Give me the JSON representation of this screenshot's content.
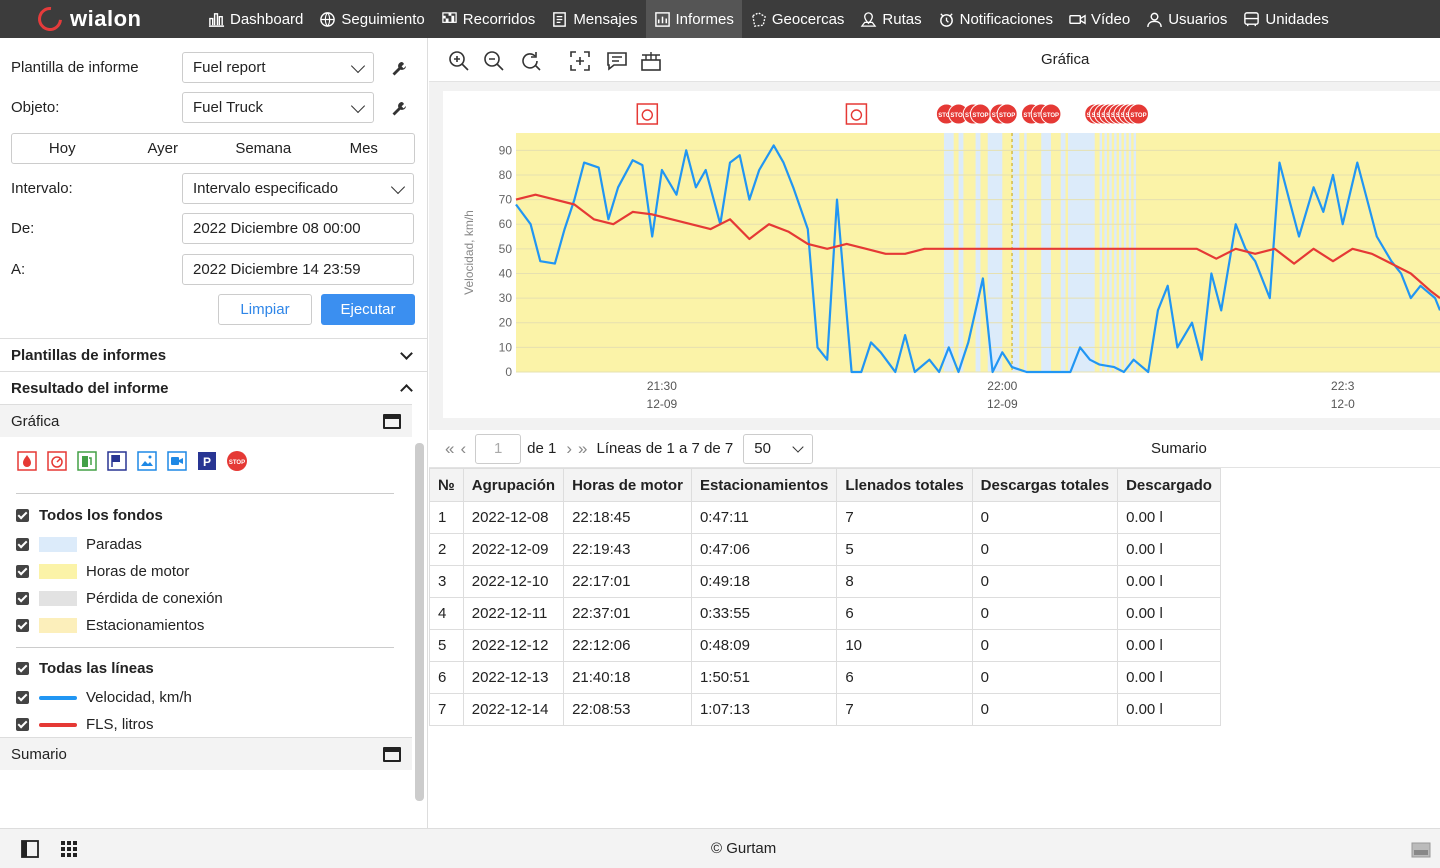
{
  "app": {
    "brand": "wialon"
  },
  "nav": [
    {
      "label": "Dashboard",
      "icon": "bar-chart-icon"
    },
    {
      "label": "Seguimiento",
      "icon": "globe-icon"
    },
    {
      "label": "Recorridos",
      "icon": "checkered-flag-icon"
    },
    {
      "label": "Mensajes",
      "icon": "document-icon"
    },
    {
      "label": "Informes",
      "icon": "report-icon",
      "active": true
    },
    {
      "label": "Geocercas",
      "icon": "polygon-icon"
    },
    {
      "label": "Rutas",
      "icon": "map-route-icon"
    },
    {
      "label": "Notificaciones",
      "icon": "clock-bell-icon"
    },
    {
      "label": "Vídeo",
      "icon": "video-icon"
    },
    {
      "label": "Usuarios",
      "icon": "user-icon"
    },
    {
      "label": "Unidades",
      "icon": "bus-icon"
    }
  ],
  "form": {
    "template_label": "Plantilla de informe",
    "template_value": "Fuel report",
    "object_label": "Objeto:",
    "object_value": "Fuel Truck",
    "periods": [
      "Hoy",
      "Ayer",
      "Semana",
      "Mes"
    ],
    "interval_label": "Intervalo:",
    "interval_value": "Intervalo especificado",
    "from_label": "De:",
    "from_value": "2022 Diciembre 08 00:00",
    "to_label": "A:",
    "to_value": "2022 Diciembre 14 23:59",
    "clear_label": "Limpiar",
    "run_label": "Ejecutar"
  },
  "sections": {
    "templates": "Plantillas de informes",
    "result": "Resultado del informe",
    "chart": "Gráfica",
    "summary": "Sumario"
  },
  "legend": {
    "bg_all": "Todos los fondos",
    "backgrounds": [
      {
        "label": "Paradas",
        "color": "#dcebfa"
      },
      {
        "label": "Horas de motor",
        "color": "#fbf3a8"
      },
      {
        "label": "Pérdida de conexión",
        "color": "#e2e2e2"
      },
      {
        "label": "Estacionamientos",
        "color": "#fcefbb"
      }
    ],
    "lines_all": "Todas las líneas",
    "lines": [
      {
        "label": "Velocidad, km/h",
        "color": "#2196f3"
      },
      {
        "label": "FLS, litros",
        "color": "#e53935"
      }
    ]
  },
  "marker_icons": [
    "fuel-drop-icon",
    "fuel-gauge-icon",
    "fuel-station-icon",
    "flag-icon",
    "image-icon",
    "video-camera-icon",
    "parking-icon",
    "stop-sign-icon"
  ],
  "chart_panel": {
    "title": "Gráfica",
    "ylabel": "Velocidad, km/h",
    "marker_text": "STOP"
  },
  "chart_data": {
    "type": "line",
    "ylabel": "Velocidad, km/h",
    "ylim": [
      0,
      95
    ],
    "yticks": [
      0,
      10,
      20,
      30,
      40,
      50,
      60,
      70,
      80,
      90
    ],
    "xticks": [
      {
        "t": "21:30",
        "d": "12-09"
      },
      {
        "t": "22:00",
        "d": "12-09"
      },
      {
        "t": "22:3",
        "d": "12-0"
      }
    ],
    "xlim_minutes": [
      21.0,
      22.9
    ],
    "series": [
      {
        "name": "Velocidad, km/h",
        "color": "#2196f3",
        "x": [
          21.0,
          21.03,
          21.05,
          21.08,
          21.1,
          21.12,
          21.14,
          21.17,
          21.19,
          21.21,
          21.24,
          21.26,
          21.28,
          21.3,
          21.33,
          21.35,
          21.37,
          21.39,
          21.42,
          21.44,
          21.46,
          21.48,
          21.5,
          21.53,
          21.55,
          21.57,
          21.6,
          21.62,
          21.64,
          21.66,
          21.69,
          21.71,
          21.73,
          21.75,
          21.78,
          21.8,
          21.82,
          21.85,
          21.87,
          21.89,
          21.91,
          21.93,
          21.96,
          21.98,
          22.0,
          22.02,
          22.05,
          22.07,
          22.09,
          22.11,
          22.14,
          22.16,
          22.18,
          22.2,
          22.23,
          22.25,
          22.27,
          22.3,
          22.32,
          22.34,
          22.36,
          22.39,
          22.41,
          22.43,
          22.45,
          22.48,
          22.5,
          22.52,
          22.55,
          22.57,
          22.59,
          22.61,
          22.64,
          22.66,
          22.68,
          22.7,
          22.73,
          22.75,
          22.77,
          22.8,
          22.82,
          22.84,
          22.86,
          22.89,
          22.9
        ],
        "y": [
          68,
          60,
          45,
          44,
          58,
          70,
          85,
          83,
          62,
          75,
          86,
          84,
          55,
          82,
          72,
          90,
          75,
          82,
          60,
          85,
          88,
          70,
          82,
          92,
          85,
          75,
          58,
          10,
          5,
          70,
          0,
          0,
          12,
          8,
          0,
          15,
          0,
          5,
          0,
          10,
          0,
          12,
          38,
          0,
          8,
          2,
          0,
          0,
          0,
          0,
          0,
          10,
          5,
          3,
          2,
          0,
          5,
          0,
          25,
          35,
          10,
          20,
          5,
          40,
          25,
          60,
          50,
          45,
          30,
          85,
          70,
          55,
          75,
          65,
          80,
          60,
          85,
          70,
          55,
          45,
          40,
          30,
          35,
          30,
          25
        ]
      },
      {
        "name": "FLS, litros",
        "color": "#e53935",
        "x": [
          21.0,
          21.04,
          21.08,
          21.12,
          21.16,
          21.2,
          21.24,
          21.28,
          21.32,
          21.36,
          21.4,
          21.44,
          21.48,
          21.52,
          21.56,
          21.6,
          21.64,
          21.68,
          21.72,
          21.76,
          21.8,
          21.84,
          21.88,
          21.92,
          21.96,
          22.0,
          22.04,
          22.08,
          22.12,
          22.16,
          22.2,
          22.24,
          22.28,
          22.32,
          22.36,
          22.4,
          22.44,
          22.48,
          22.52,
          22.56,
          22.6,
          22.64,
          22.68,
          22.72,
          22.76,
          22.8,
          22.84,
          22.88,
          22.9
        ],
        "y": [
          70,
          72,
          70,
          68,
          62,
          60,
          65,
          64,
          62,
          60,
          58,
          62,
          54,
          60,
          57,
          52,
          50,
          52,
          50,
          48,
          48,
          50,
          50,
          50,
          50,
          50,
          50,
          50,
          50,
          50,
          50,
          50,
          50,
          50,
          50,
          50,
          46,
          50,
          48,
          50,
          44,
          50,
          45,
          50,
          48,
          44,
          40,
          33,
          30
        ]
      }
    ]
  },
  "table": {
    "pager": {
      "page": "1",
      "of": "de 1",
      "lines": "Líneas de 1 a 7 de 7",
      "per_page": "50",
      "summary_tab": "Sumario"
    },
    "headers": [
      "№",
      "Agrupación",
      "Horas de motor",
      "Estacionamientos",
      "Llenados totales",
      "Descargas totales",
      "Descargado"
    ],
    "rows": [
      [
        "1",
        "2022-12-08",
        "22:18:45",
        "0:47:11",
        "7",
        "0",
        "0.00 l"
      ],
      [
        "2",
        "2022-12-09",
        "22:19:43",
        "0:47:06",
        "5",
        "0",
        "0.00 l"
      ],
      [
        "3",
        "2022-12-10",
        "22:17:01",
        "0:49:18",
        "8",
        "0",
        "0.00 l"
      ],
      [
        "4",
        "2022-12-11",
        "22:37:01",
        "0:33:55",
        "6",
        "0",
        "0.00 l"
      ],
      [
        "5",
        "2022-12-12",
        "22:12:06",
        "0:48:09",
        "10",
        "0",
        "0.00 l"
      ],
      [
        "6",
        "2022-12-13",
        "21:40:18",
        "1:50:51",
        "6",
        "0",
        "0.00 l"
      ],
      [
        "7",
        "2022-12-14",
        "22:08:53",
        "1:07:13",
        "7",
        "0",
        "0.00 l"
      ]
    ]
  },
  "footer": {
    "copyright": "© Gurtam"
  }
}
